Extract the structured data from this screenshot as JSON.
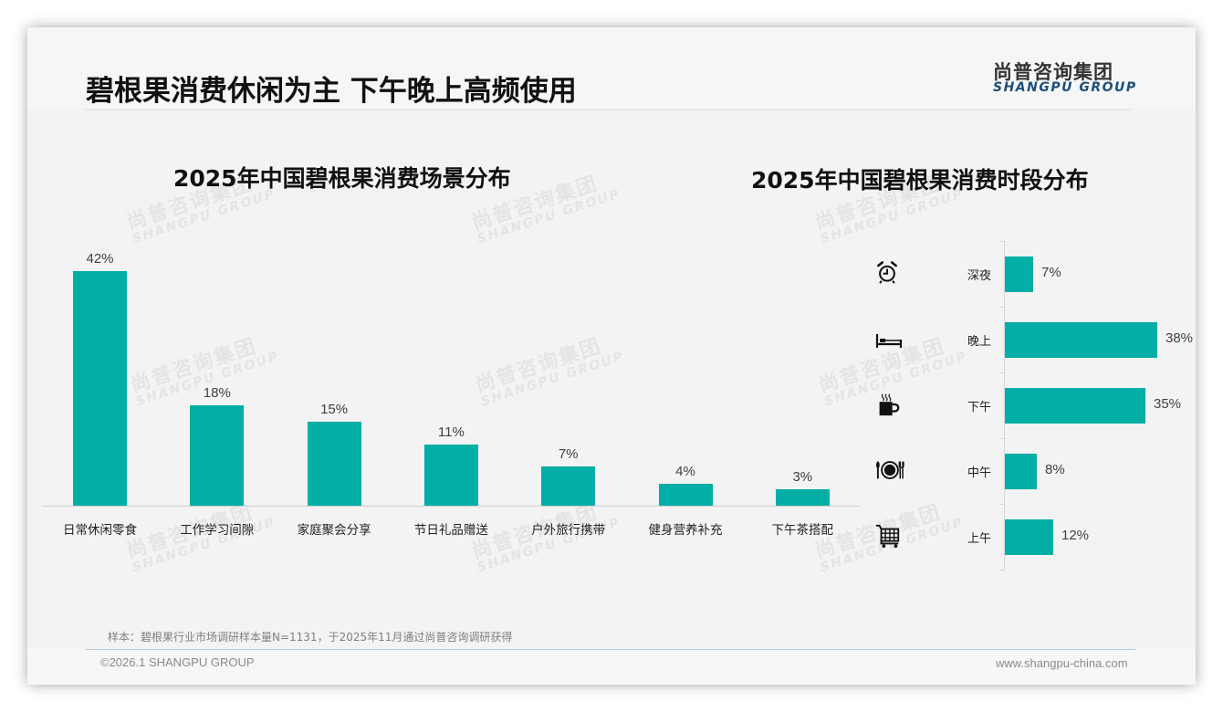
{
  "header": {
    "title": "碧根果消费休闲为主 下午晚上高频使用",
    "logo_cn": "尚普咨询集团",
    "logo_en": "SHANGPU GROUP"
  },
  "watermark": {
    "cn": "尚普咨询集团",
    "en": "SHANGPU GROUP"
  },
  "colors": {
    "bar": "#00aea5",
    "title": "#111111",
    "logo_en": "#1f4e79"
  },
  "chart_data": [
    {
      "type": "bar",
      "title": "2025年中国碧根果消费场景分布",
      "categories": [
        "日常休闲零食",
        "工作学习间隙",
        "家庭聚会分享",
        "节日礼品赠送",
        "户外旅行携带",
        "健身营养补充",
        "下午茶搭配"
      ],
      "values": [
        42,
        18,
        15,
        11,
        7,
        4,
        3
      ],
      "labels": [
        "42%",
        "18%",
        "15%",
        "11%",
        "7%",
        "4%",
        "3%"
      ],
      "unit": "%",
      "xlabel": "",
      "ylabel": "",
      "ylim": [
        0,
        45
      ],
      "grid": false,
      "legend": "none"
    },
    {
      "type": "bar",
      "orientation": "horizontal",
      "title": "2025年中国碧根果消费时段分布",
      "categories": [
        "深夜",
        "晚上",
        "下午",
        "中午",
        "上午"
      ],
      "values": [
        7,
        38,
        35,
        8,
        12
      ],
      "labels": [
        "7%",
        "38%",
        "35%",
        "8%",
        "12%"
      ],
      "icons": [
        "alarm-clock-icon",
        "bed-icon",
        "coffee-cup-icon",
        "plate-cutlery-icon",
        "shopping-cart-icon"
      ],
      "unit": "%",
      "xlabel": "",
      "ylabel": "",
      "xlim": [
        0,
        40
      ],
      "grid": false,
      "legend": "none"
    }
  ],
  "footer": {
    "note": "样本：碧根果行业市场调研样本量N=1131，于2025年11月通过尚普咨询调研获得",
    "copyright": "©2026.1 SHANGPU GROUP",
    "website": "www.shangpu-china.com"
  }
}
